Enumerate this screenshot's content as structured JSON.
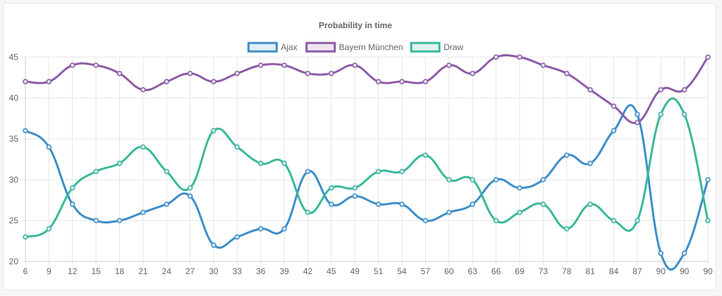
{
  "chart_data": {
    "type": "line",
    "title": "Probability in time",
    "xlabel": "",
    "ylabel": "",
    "categories": [
      "6",
      "9",
      "12",
      "15",
      "18",
      "21",
      "24",
      "27",
      "30",
      "33",
      "36",
      "39",
      "42",
      "45",
      "49",
      "51",
      "54",
      "57",
      "60",
      "63",
      "66",
      "69",
      "73",
      "78",
      "81",
      "84",
      "87",
      "90",
      "90",
      "90"
    ],
    "ylim": [
      20,
      45
    ],
    "yticks": [
      "20",
      "25",
      "30",
      "35",
      "40",
      "45"
    ],
    "grid": true,
    "legend_position": "top",
    "series": [
      {
        "name": "Ajax",
        "color": "#3d8ec9",
        "values": [
          36,
          34,
          27,
          25,
          25,
          26,
          27,
          28,
          22,
          23,
          24,
          24,
          31,
          27,
          28,
          27,
          27,
          25,
          26,
          27,
          30,
          29,
          30,
          33,
          32,
          36,
          38,
          21,
          21,
          30
        ]
      },
      {
        "name": "Bayern München",
        "color": "#8e5ba6",
        "values": [
          42,
          42,
          44,
          44,
          43,
          41,
          42,
          43,
          42,
          43,
          44,
          44,
          43,
          43,
          44,
          42,
          42,
          42,
          44,
          43,
          45,
          45,
          44,
          43,
          41,
          39,
          37,
          41,
          41,
          45
        ]
      },
      {
        "name": "Draw",
        "color": "#3ab89a",
        "values": [
          23,
          24,
          29,
          31,
          32,
          34,
          31,
          29,
          36,
          34,
          32,
          32,
          26,
          29,
          29,
          31,
          31,
          33,
          30,
          30,
          25,
          26,
          27,
          24,
          27,
          25,
          25,
          38,
          38,
          25
        ]
      }
    ]
  }
}
